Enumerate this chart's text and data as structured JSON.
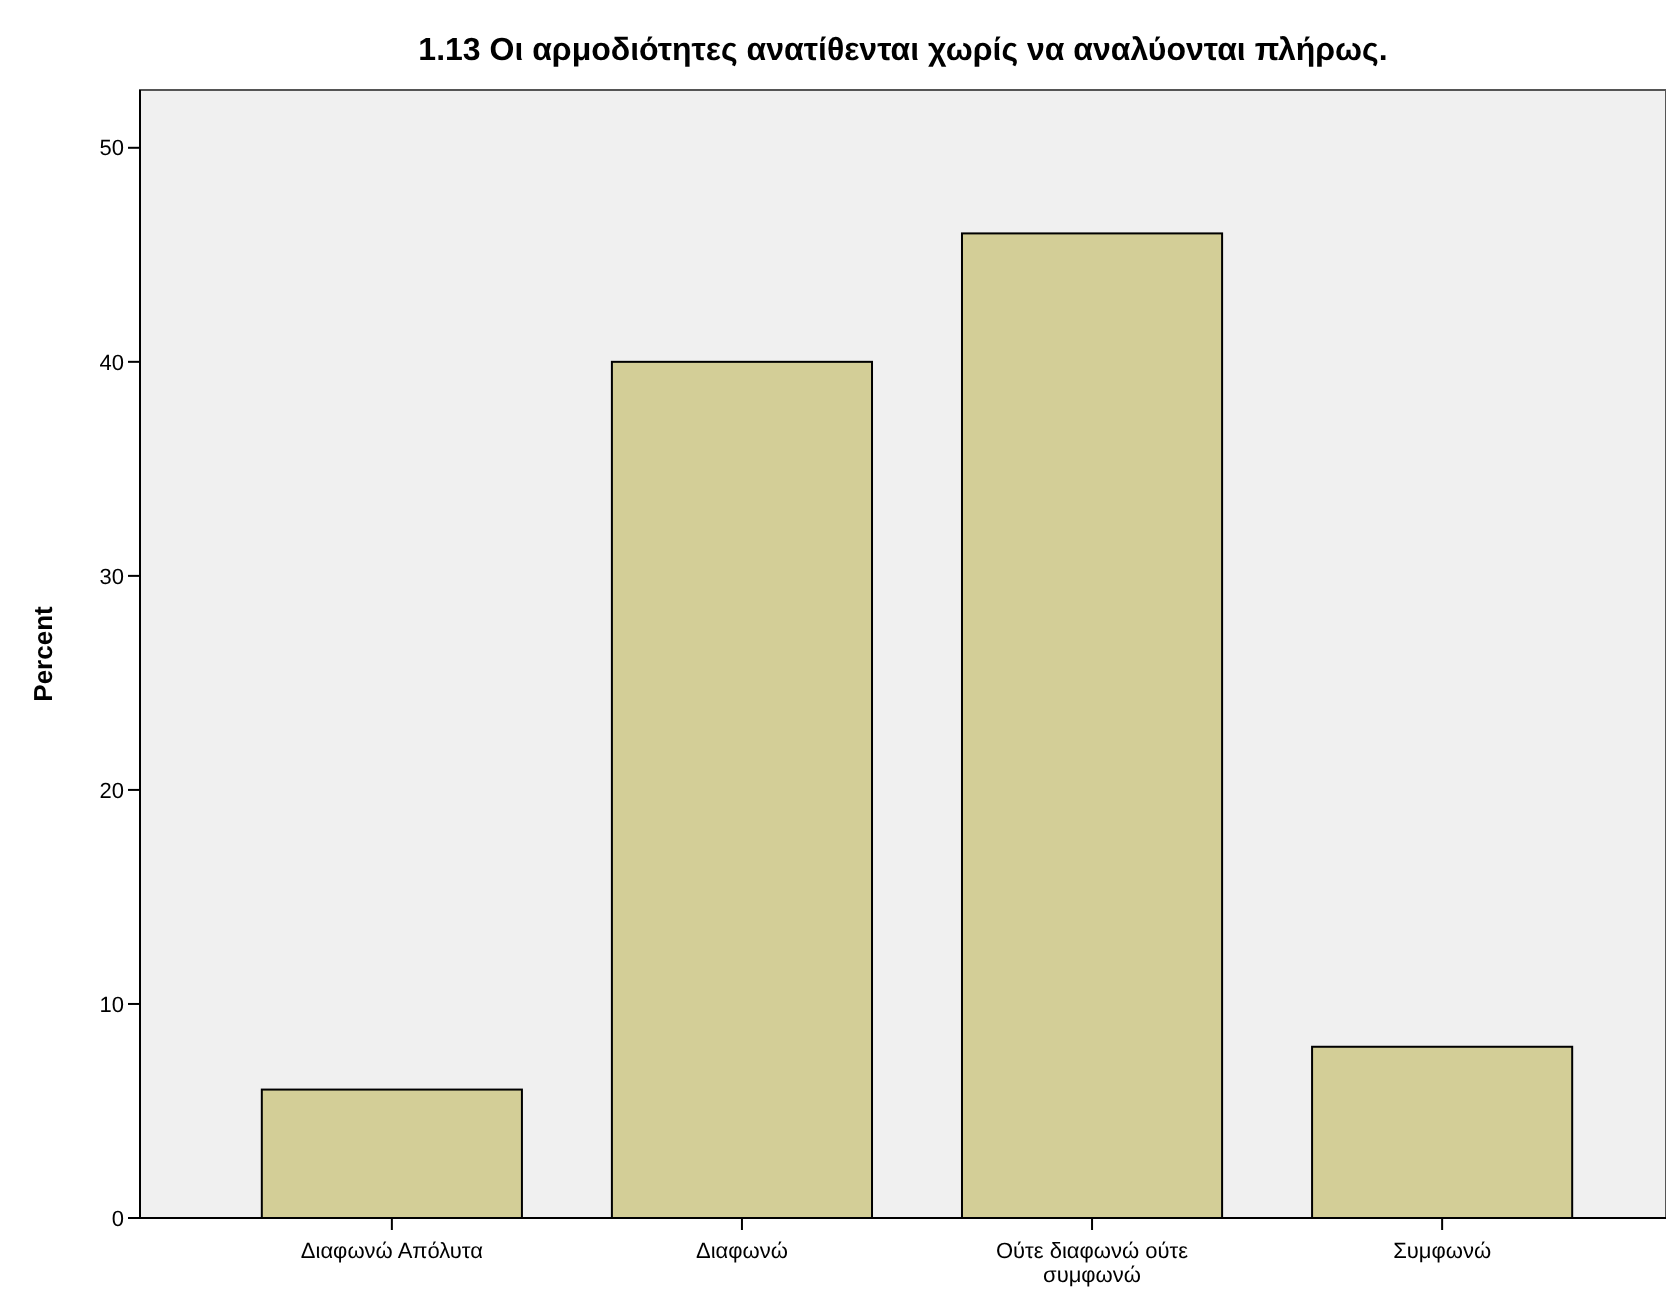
{
  "chart_data": {
    "type": "bar",
    "title": "1.13 Οι αρμοδιότητες ανατίθενται χωρίς να αναλύονται πλήρως.",
    "ylabel": "Percent",
    "categories": [
      "Διαφωνώ Απόλυτα",
      "Διαφωνώ",
      "Ούτε διαφωνώ ούτε συμφωνώ",
      "Συμφωνώ"
    ],
    "values": [
      6,
      40,
      46,
      8
    ],
    "color": "#d3ce97",
    "ylim": [
      0,
      52.7
    ],
    "yticks": [
      0,
      10,
      20,
      30,
      40,
      50
    ],
    "grid": false
  }
}
